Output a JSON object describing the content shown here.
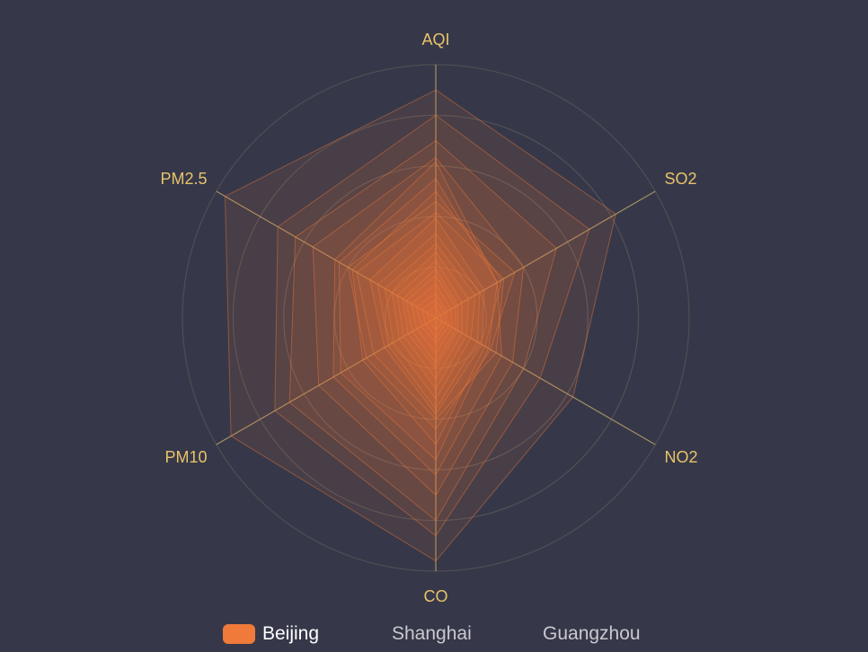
{
  "chart_data": {
    "type": "radar",
    "indicators": [
      {
        "name": "AQI",
        "max": 300
      },
      {
        "name": "SO2",
        "max": 100
      },
      {
        "name": "NO2",
        "max": 200
      },
      {
        "name": "CO",
        "max": 5
      },
      {
        "name": "PM10",
        "max": 300
      },
      {
        "name": "PM2.5",
        "max": 250
      }
    ],
    "split_number": 5,
    "legend": {
      "placement": "bottom",
      "items": [
        {
          "name": "Beijing",
          "active": true
        },
        {
          "name": "Shanghai",
          "active": false
        },
        {
          "name": "Guangzhou",
          "active": false
        }
      ]
    },
    "series": [
      {
        "name": "Beijing",
        "color": "#F07A3A",
        "data": [
          [
            270,
            82,
            125,
            4.8,
            280,
            240
          ],
          [
            240,
            70,
            95,
            4.3,
            220,
            180
          ],
          [
            210,
            55,
            80,
            4.0,
            200,
            160
          ],
          [
            190,
            40,
            70,
            3.5,
            160,
            140
          ],
          [
            185,
            28,
            60,
            3.1,
            140,
            115
          ],
          [
            165,
            28,
            48,
            2.8,
            130,
            110
          ],
          [
            150,
            30,
            45,
            2.5,
            100,
            95
          ],
          [
            138,
            36,
            50,
            2.2,
            95,
            100
          ],
          [
            125,
            31,
            55,
            2.0,
            85,
            90
          ],
          [
            118,
            22,
            42,
            1.9,
            70,
            75
          ],
          [
            100,
            20,
            38,
            1.8,
            65,
            66
          ],
          [
            88,
            18,
            32,
            1.6,
            58,
            58
          ],
          [
            78,
            15,
            28,
            1.4,
            50,
            50
          ],
          [
            68,
            12,
            24,
            1.2,
            44,
            44
          ],
          [
            58,
            10,
            20,
            1.0,
            38,
            38
          ],
          [
            50,
            9,
            18,
            0.9,
            32,
            34
          ],
          [
            40,
            7,
            15,
            0.7,
            26,
            28
          ],
          [
            30,
            5,
            12,
            0.5,
            20,
            22
          ],
          [
            22,
            4,
            9,
            0.4,
            14,
            16
          ],
          [
            15,
            2,
            6,
            0.25,
            9,
            10
          ]
        ]
      }
    ],
    "colors": {
      "background": "#363849",
      "accent": "#F07A3A",
      "axis_label": "#E8C36A",
      "axis_line": "#B8A06A",
      "split_line": "#8A8270"
    }
  }
}
